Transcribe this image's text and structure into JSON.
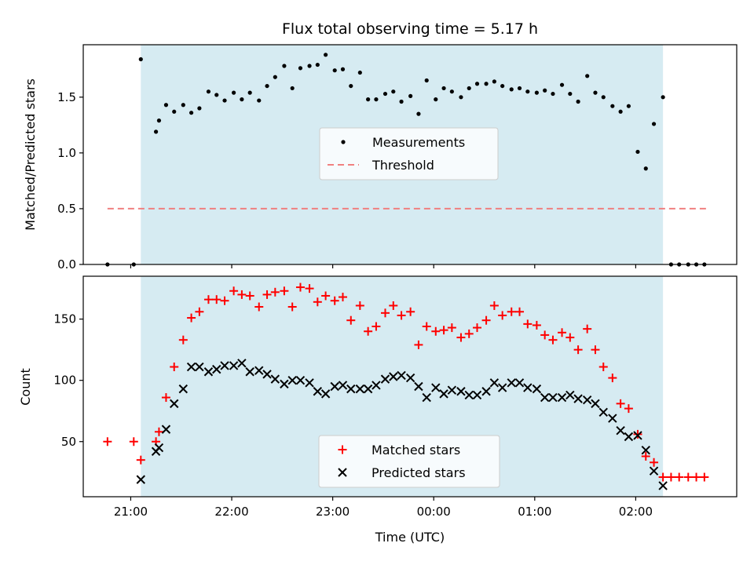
{
  "chart_data": [
    {
      "type": "scatter",
      "title": "Flux total observing time = 5.17 h",
      "xlabel": "",
      "ylabel": "Matched/Predicted stars",
      "x_unit": "hours UTC (times after midnight shown as 24+)",
      "xlim": [
        20.53,
        27.0
      ],
      "ylim": [
        0.0,
        1.97
      ],
      "yticks": [
        0.0,
        0.5,
        1.0,
        1.5
      ],
      "grid": false,
      "legend_position": "center",
      "shaded_span": [
        21.1,
        26.27
      ],
      "threshold": {
        "name": "Threshold",
        "y": 0.5,
        "x_range": [
          20.77,
          26.7
        ],
        "color": "#f08080"
      },
      "series": [
        {
          "name": "Measurements",
          "color": "#000000",
          "marker": "dot",
          "x": [
            20.77,
            21.03,
            21.1,
            21.25,
            21.28,
            21.35,
            21.43,
            21.52,
            21.6,
            21.68,
            21.77,
            21.85,
            21.93,
            22.02,
            22.1,
            22.18,
            22.27,
            22.35,
            22.43,
            22.52,
            22.6,
            22.68,
            22.77,
            22.85,
            22.93,
            23.02,
            23.1,
            23.18,
            23.27,
            23.35,
            23.43,
            23.52,
            23.6,
            23.68,
            23.77,
            23.85,
            23.93,
            24.02,
            24.1,
            24.18,
            24.27,
            24.35,
            24.43,
            24.52,
            24.6,
            24.68,
            24.77,
            24.85,
            24.93,
            25.02,
            25.1,
            25.18,
            25.27,
            25.35,
            25.43,
            25.52,
            25.6,
            25.68,
            25.77,
            25.85,
            25.93,
            26.02,
            26.1,
            26.18,
            26.27,
            26.35,
            26.43,
            26.52,
            26.6,
            26.68
          ],
          "y": [
            0.0,
            0.0,
            1.84,
            1.19,
            1.29,
            1.43,
            1.37,
            1.43,
            1.36,
            1.4,
            1.55,
            1.52,
            1.47,
            1.54,
            1.48,
            1.54,
            1.47,
            1.6,
            1.68,
            1.78,
            1.58,
            1.76,
            1.78,
            1.79,
            1.88,
            1.74,
            1.75,
            1.6,
            1.72,
            1.48,
            1.48,
            1.53,
            1.55,
            1.46,
            1.51,
            1.35,
            1.65,
            1.48,
            1.58,
            1.55,
            1.5,
            1.58,
            1.62,
            1.62,
            1.64,
            1.6,
            1.57,
            1.58,
            1.55,
            1.54,
            1.56,
            1.53,
            1.61,
            1.53,
            1.46,
            1.69,
            1.54,
            1.5,
            1.42,
            1.37,
            1.42,
            1.01,
            0.86,
            1.26,
            1.5,
            0.0,
            0.0,
            0.0,
            0.0,
            0.0
          ]
        }
      ]
    },
    {
      "type": "scatter",
      "title": "",
      "xlabel": "Time (UTC)",
      "ylabel": "Count",
      "x_unit": "hours UTC (times after midnight shown as 24+)",
      "xlim": [
        20.53,
        27.0
      ],
      "ylim": [
        5,
        185
      ],
      "yticks": [
        50,
        100,
        150
      ],
      "xticks": [
        21,
        22,
        23,
        24,
        25,
        26
      ],
      "xtick_labels": [
        "21:00",
        "22:00",
        "23:00",
        "00:00",
        "01:00",
        "02:00"
      ],
      "grid": false,
      "legend_position": "lower center",
      "shaded_span": [
        21.1,
        26.27
      ],
      "series": [
        {
          "name": "Matched stars",
          "color": "#ff0000",
          "marker": "plus",
          "x": [
            20.77,
            21.03,
            21.1,
            21.25,
            21.28,
            21.35,
            21.43,
            21.52,
            21.6,
            21.68,
            21.77,
            21.85,
            21.93,
            22.02,
            22.1,
            22.18,
            22.27,
            22.35,
            22.43,
            22.52,
            22.6,
            22.68,
            22.77,
            22.85,
            22.93,
            23.02,
            23.1,
            23.18,
            23.27,
            23.35,
            23.43,
            23.52,
            23.6,
            23.68,
            23.77,
            23.85,
            23.93,
            24.02,
            24.1,
            24.18,
            24.27,
            24.35,
            24.43,
            24.52,
            24.6,
            24.68,
            24.77,
            24.85,
            24.93,
            25.02,
            25.1,
            25.18,
            25.27,
            25.35,
            25.43,
            25.52,
            25.6,
            25.68,
            25.77,
            25.85,
            25.93,
            26.02,
            26.1,
            26.18,
            26.27,
            26.35,
            26.43,
            26.52,
            26.6,
            26.68
          ],
          "y": [
            50,
            50,
            35,
            50,
            58,
            86,
            111,
            133,
            151,
            156,
            166,
            166,
            165,
            173,
            170,
            169,
            160,
            170,
            172,
            173,
            160,
            176,
            175,
            164,
            169,
            165,
            168,
            149,
            161,
            140,
            144,
            155,
            161,
            153,
            156,
            129,
            144,
            140,
            141,
            143,
            135,
            138,
            143,
            149,
            161,
            153,
            156,
            156,
            146,
            145,
            137,
            133,
            139,
            135,
            125,
            142,
            125,
            111,
            102,
            81,
            77,
            56,
            38,
            33,
            21,
            21,
            21,
            21,
            21,
            21
          ]
        },
        {
          "name": "Predicted stars",
          "color": "#000000",
          "marker": "cross",
          "x": [
            21.1,
            21.25,
            21.28,
            21.35,
            21.43,
            21.52,
            21.6,
            21.68,
            21.77,
            21.85,
            21.93,
            22.02,
            22.1,
            22.18,
            22.27,
            22.35,
            22.43,
            22.52,
            22.6,
            22.68,
            22.77,
            22.85,
            22.93,
            23.02,
            23.1,
            23.18,
            23.27,
            23.35,
            23.43,
            23.52,
            23.6,
            23.68,
            23.77,
            23.85,
            23.93,
            24.02,
            24.1,
            24.18,
            24.27,
            24.35,
            24.43,
            24.52,
            24.6,
            24.68,
            24.77,
            24.85,
            24.93,
            25.02,
            25.1,
            25.18,
            25.27,
            25.35,
            25.43,
            25.52,
            25.6,
            25.68,
            25.77,
            25.85,
            25.93,
            26.02,
            26.1,
            26.18,
            26.27
          ],
          "y": [
            19,
            42,
            45,
            60,
            81,
            93,
            111,
            111,
            107,
            109,
            112,
            112,
            114,
            107,
            108,
            105,
            101,
            97,
            100,
            100,
            98,
            91,
            89,
            95,
            96,
            93,
            93,
            93,
            96,
            101,
            103,
            104,
            102,
            95,
            86,
            94,
            89,
            92,
            91,
            88,
            88,
            91,
            98,
            94,
            98,
            98,
            94,
            93,
            86,
            86,
            86,
            88,
            85,
            84,
            81,
            74,
            69,
            59,
            54,
            55,
            43,
            26,
            14
          ]
        }
      ]
    }
  ]
}
